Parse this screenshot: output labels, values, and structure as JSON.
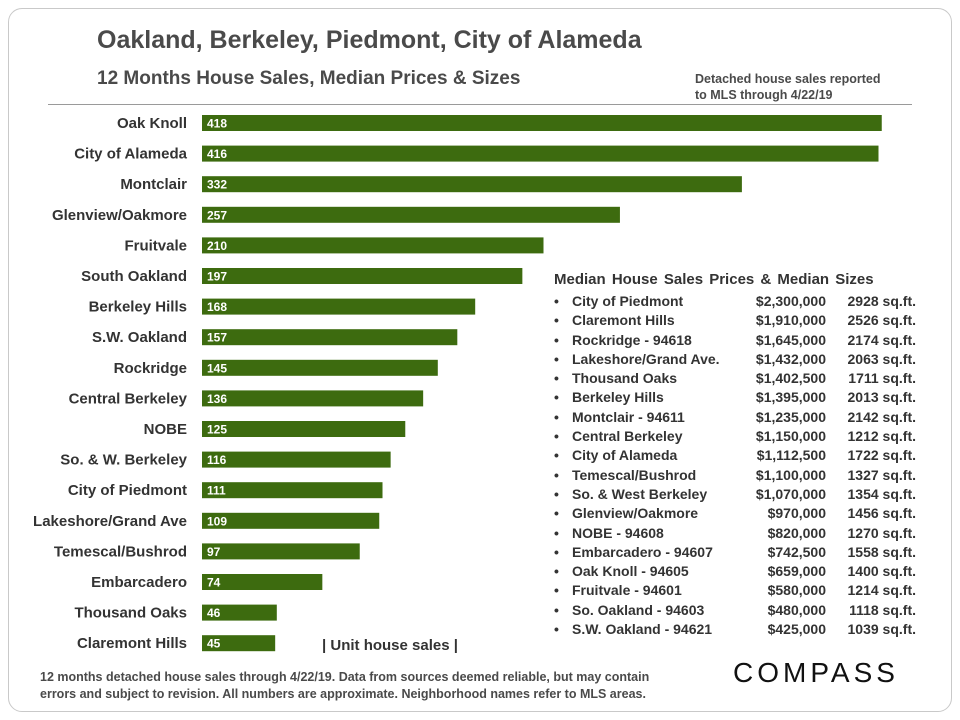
{
  "title": "Oakland, Berkeley, Piedmont, City of Alameda",
  "subtitle": "12 Months House Sales, Median Prices & Sizes",
  "note_top": [
    "Detached house sales reported",
    "to MLS through 4/22/19"
  ],
  "footnote": [
    "12 months detached house sales through 4/22/19. Data from sources deemed reliable, but may contain",
    "errors and subject to revision. All numbers are approximate. Neighborhood names refer to MLS areas."
  ],
  "logo": "COMPASS",
  "colors": {
    "bar": "#3d6b0f",
    "text": "#333333"
  },
  "chart_data": {
    "type": "bar",
    "orientation": "horizontal",
    "categories": [
      "Oak Knoll",
      "City of Alameda",
      "Montclair",
      "Glenview/Oakmore",
      "Fruitvale",
      "South Oakland",
      "Berkeley Hills",
      "S.W. Oakland",
      "Rockridge",
      "Central Berkeley",
      "NOBE",
      "So. & W. Berkeley",
      "City of Piedmont",
      "Lakeshore/Grand Ave",
      "Temescal/Bushrod",
      "Embarcadero",
      "Thousand Oaks",
      "Claremont Hills"
    ],
    "values": [
      418,
      416,
      332,
      257,
      210,
      197,
      168,
      157,
      145,
      136,
      125,
      116,
      111,
      109,
      97,
      74,
      46,
      45
    ],
    "unit_label": "| Unit house sales |",
    "xlim": [
      0,
      420
    ]
  },
  "price_panel": {
    "heading": "Median  House  Sales  Prices & Median  Sizes",
    "bullet": "•",
    "rows": [
      {
        "name": "City of Piedmont",
        "price": "$2,300,000",
        "size": "2928 sq.ft."
      },
      {
        "name": "Claremont Hills",
        "price": "$1,910,000",
        "size": "2526 sq.ft."
      },
      {
        "name": "Rockridge - 94618",
        "price": "$1,645,000",
        "size": "2174 sq.ft."
      },
      {
        "name": "Lakeshore/Grand Ave.",
        "price": "$1,432,000",
        "size": "2063 sq.ft."
      },
      {
        "name": "Thousand Oaks",
        "price": "$1,402,500",
        "size": "1711 sq.ft."
      },
      {
        "name": "Berkeley Hills",
        "price": "$1,395,000",
        "size": "2013 sq.ft."
      },
      {
        "name": "Montclair - 94611",
        "price": "$1,235,000",
        "size": "2142 sq.ft."
      },
      {
        "name": "Central Berkeley",
        "price": "$1,150,000",
        "size": "1212 sq.ft."
      },
      {
        "name": "City of Alameda",
        "price": "$1,112,500",
        "size": "1722 sq.ft."
      },
      {
        "name": "Temescal/Bushrod",
        "price": "$1,100,000",
        "size": "1327 sq.ft."
      },
      {
        "name": "So. & West Berkeley",
        "price": "$1,070,000",
        "size": "1354 sq.ft."
      },
      {
        "name": "Glenview/Oakmore",
        "price": "$970,000",
        "size": "1456 sq.ft."
      },
      {
        "name": "NOBE - 94608",
        "price": "$820,000",
        "size": "1270 sq.ft."
      },
      {
        "name": "Embarcadero - 94607",
        "price": "$742,500",
        "size": "1558 sq.ft."
      },
      {
        "name": "Oak Knoll - 94605",
        "price": "$659,000",
        "size": "1400 sq.ft."
      },
      {
        "name": "Fruitvale - 94601",
        "price": "$580,000",
        "size": "1214 sq.ft."
      },
      {
        "name": "So. Oakland - 94603",
        "price": "$480,000",
        "size": "1118 sq.ft."
      },
      {
        "name": "S.W. Oakland - 94621",
        "price": "$425,000",
        "size": "1039 sq.ft."
      }
    ]
  }
}
